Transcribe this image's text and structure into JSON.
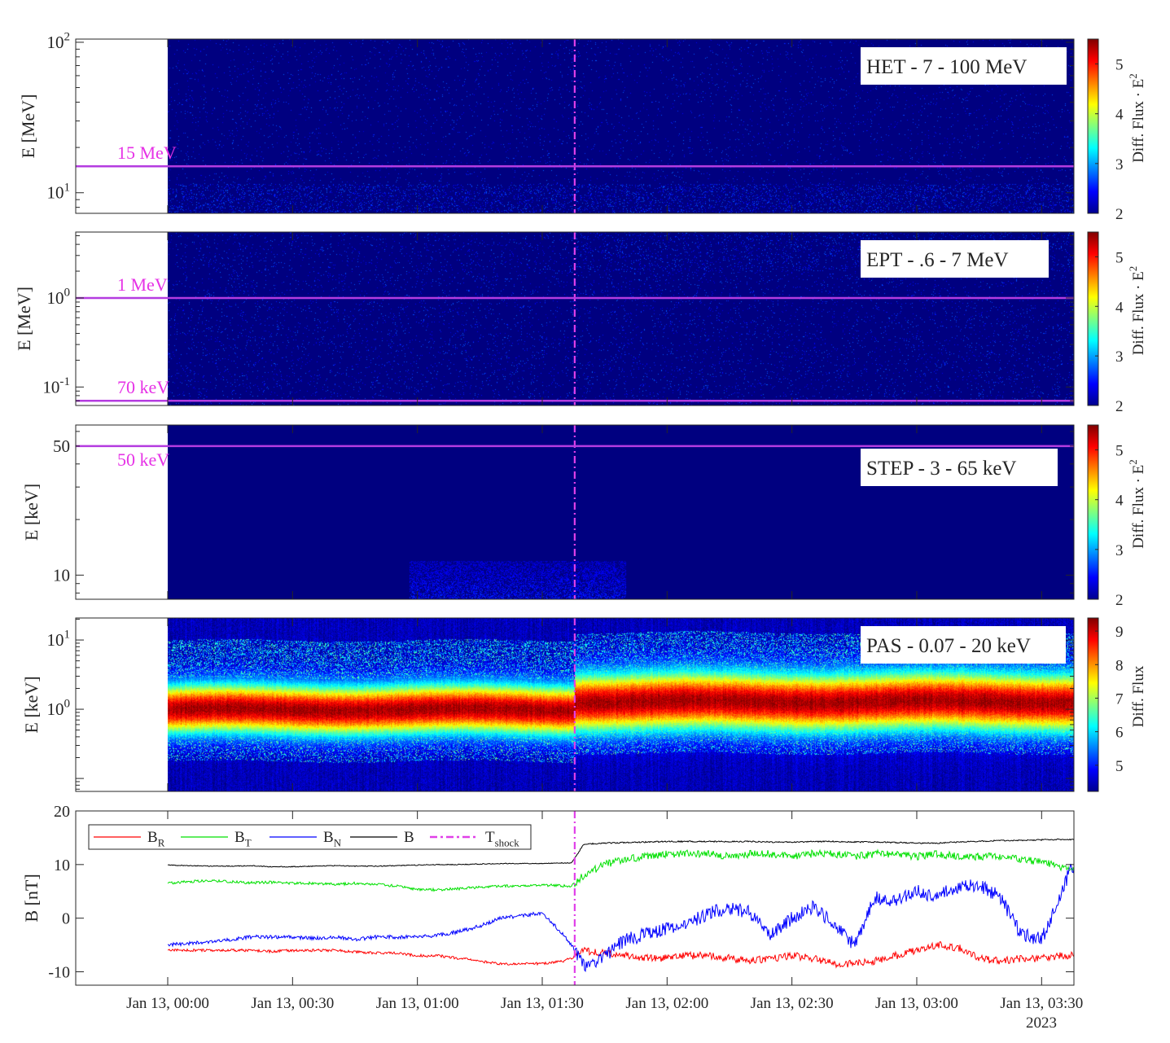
{
  "figure": {
    "xaxis": {
      "tick_labels": [
        "Jan 13, 00:00",
        "Jan 13, 00:30",
        "Jan 13, 01:00",
        "Jan 13, 01:30",
        "Jan 13, 02:00",
        "Jan 13, 02:30",
        "Jan 13, 03:00",
        "Jan 13, 03:30"
      ],
      "tick_times": [
        "00:00",
        "00:30",
        "01:00",
        "01:30",
        "02:00",
        "02:30",
        "03:00",
        "03:30"
      ],
      "year_label": "2023"
    },
    "colormap": "jet",
    "shock_color": "#e040e8",
    "reference_line_color": "#b43ce0",
    "reference_label_color": "#e632e6"
  },
  "chart_data": [
    {
      "type": "heatmap",
      "panel": "HET",
      "box_label": "HET - 7 - 100 MeV",
      "ylabel": "E [MeV]",
      "yscale": "log",
      "ylim": [
        7.3,
        105
      ],
      "yticks": [
        {
          "value": 10,
          "label": "10^1"
        },
        {
          "value": 100,
          "label": "10^2"
        }
      ],
      "colorbar": {
        "label": "Diff. Flux · E^2",
        "clim": [
          2,
          5.5
        ],
        "ticks": [
          2,
          3,
          4,
          5
        ]
      },
      "reference_lines": [
        {
          "value": 15,
          "label": "15 MeV"
        }
      ],
      "shock_time": "01:37:48",
      "data_start": "00:00",
      "description_level": "near background (2) everywhere, sparse speckles"
    },
    {
      "type": "heatmap",
      "panel": "EPT",
      "box_label": "EPT - .6 - 7 MeV",
      "ylabel": "E [MeV]",
      "yscale": "log",
      "ylim": [
        0.062,
        5.5
      ],
      "yticks": [
        {
          "value": 0.1,
          "label": "10^-1"
        },
        {
          "value": 1,
          "label": "10^0"
        }
      ],
      "colorbar": {
        "label": "Diff. Flux · E^2",
        "clim": [
          2,
          5.5
        ],
        "ticks": [
          2,
          3,
          4,
          5
        ]
      },
      "reference_lines": [
        {
          "value": 1,
          "label": "1 MeV"
        },
        {
          "value": 0.07,
          "label": "70 keV"
        }
      ],
      "shock_time": "01:37:48",
      "data_start": "00:00"
    },
    {
      "type": "heatmap",
      "panel": "STEP",
      "box_label": "STEP - 3 - 65 keV",
      "ylabel": "E [keV]",
      "yscale": "log",
      "ylim": [
        7.4,
        65
      ],
      "yticks": [
        {
          "value": 10,
          "label": "10"
        },
        {
          "value": 50,
          "label": "50"
        }
      ],
      "colorbar": {
        "label": "Diff. Flux · E^2",
        "clim": [
          2,
          5.5
        ],
        "ticks": [
          2,
          3,
          4,
          5
        ]
      },
      "reference_lines": [
        {
          "value": 50,
          "label": "50 keV"
        }
      ],
      "shock_time": "01:37:48",
      "data_start": "00:00",
      "enhancement": {
        "time_range": [
          "00:58",
          "01:50"
        ],
        "energy_below_keV": 12,
        "level": 2.5
      }
    },
    {
      "type": "heatmap",
      "panel": "PAS",
      "box_label": "PAS - 0.07 - 20 keV",
      "ylabel": "E [keV]",
      "yscale": "log",
      "ylim": [
        0.065,
        20.8
      ],
      "yticks": [
        {
          "value": 1,
          "label": "10^0"
        },
        {
          "value": 10,
          "label": "10^1"
        }
      ],
      "colorbar": {
        "label": "Diff. Flux",
        "clim": [
          4.22,
          9.39
        ],
        "ticks": [
          5,
          6,
          7,
          8,
          9
        ]
      },
      "shock_time": "01:37:48",
      "data_start": "00:00",
      "peak_energy_keV": {
        "pre_shock": 1.0,
        "post_shock": 1.3
      },
      "peak_level": 9.2
    },
    {
      "type": "line",
      "panel": "B",
      "ylabel": "B [nT]",
      "ylim": [
        -12.5,
        20
      ],
      "yticks": [
        -10,
        0,
        10,
        20
      ],
      "shock_time": "01:37:48",
      "times": [
        "00:00",
        "00:05",
        "00:10",
        "00:15",
        "00:20",
        "00:25",
        "00:30",
        "00:35",
        "00:40",
        "00:45",
        "00:50",
        "00:55",
        "01:00",
        "01:05",
        "01:10",
        "01:15",
        "01:20",
        "01:25",
        "01:30",
        "01:35",
        "01:37",
        "01:40",
        "01:45",
        "01:50",
        "01:55",
        "02:00",
        "02:05",
        "02:10",
        "02:15",
        "02:20",
        "02:25",
        "02:30",
        "02:35",
        "02:40",
        "02:45",
        "02:50",
        "02:55",
        "03:00",
        "03:05",
        "03:10",
        "03:15",
        "03:20",
        "03:25",
        "03:30",
        "03:35",
        "03:37"
      ],
      "series": [
        {
          "name": "B_R",
          "label": "B",
          "sub": "R",
          "color": "#ff0000",
          "values": [
            -6,
            -6,
            -6,
            -6,
            -6,
            -6.2,
            -6,
            -6,
            -6,
            -6.3,
            -6.5,
            -6.5,
            -7,
            -7,
            -7.5,
            -8,
            -8.5,
            -8.5,
            -8.5,
            -8,
            -7.5,
            -6,
            -6.5,
            -7,
            -7.5,
            -7.5,
            -7,
            -7,
            -7.5,
            -8,
            -7.5,
            -7,
            -7.5,
            -8.5,
            -8.5,
            -8,
            -7,
            -6,
            -5,
            -5.5,
            -7.5,
            -8,
            -7.5,
            -7.5,
            -7,
            -7
          ]
        },
        {
          "name": "B_T",
          "label": "B",
          "sub": "T",
          "color": "#00e000",
          "values": [
            6.5,
            6.8,
            7,
            6.8,
            6.6,
            6.7,
            6.5,
            6.5,
            6.3,
            6.5,
            6.3,
            6,
            5.3,
            5.3,
            5.5,
            5.8,
            6,
            6,
            6.2,
            6,
            6,
            8,
            10,
            11,
            11.5,
            12,
            12,
            12,
            11.5,
            12,
            12,
            11.5,
            12,
            12,
            11.5,
            12,
            12,
            11.5,
            12,
            11.5,
            11.5,
            11.5,
            11,
            10.5,
            9.5,
            9
          ]
        },
        {
          "name": "B_N",
          "label": "B",
          "sub": "N",
          "color": "#0000ff",
          "values": [
            -5,
            -4.7,
            -4.5,
            -4,
            -3.5,
            -3.5,
            -3.5,
            -3.8,
            -3.5,
            -4,
            -3.5,
            -3.5,
            -3.5,
            -3.2,
            -2.5,
            -1.5,
            0,
            0.5,
            1,
            -3,
            -5,
            -9,
            -7,
            -4,
            -3,
            -2,
            -1,
            1,
            2,
            1,
            -3,
            0,
            2,
            -1,
            -5,
            4,
            3,
            5,
            4,
            6,
            6,
            4,
            -3,
            -4,
            5,
            9.5
          ]
        },
        {
          "name": "B",
          "label": "B",
          "sub": "",
          "color": "#000000",
          "values": [
            9.9,
            9.8,
            9.7,
            9.7,
            9.8,
            9.6,
            9.6,
            9.7,
            9.8,
            9.7,
            9.7,
            9.8,
            9.9,
            10,
            10,
            10.1,
            10.2,
            10.2,
            10.2,
            10.3,
            10.3,
            13.8,
            14,
            14.1,
            14.2,
            14.3,
            14.3,
            14.3,
            14.3,
            14.3,
            14.2,
            14.2,
            14.3,
            14.3,
            14.2,
            14.2,
            14.1,
            14,
            14,
            14.2,
            14.3,
            14.5,
            14.5,
            14.6,
            14.7,
            14.7
          ]
        }
      ],
      "legend": {
        "placement": "top-left",
        "shock_label": "T",
        "shock_sub": "shock"
      }
    }
  ]
}
